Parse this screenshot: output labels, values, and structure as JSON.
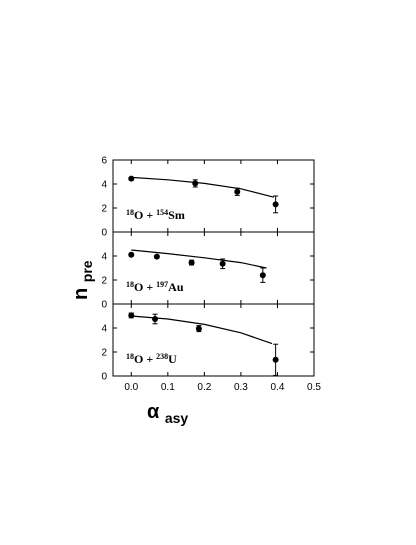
{
  "chart_data": {
    "type": "scatter",
    "x_axis": {
      "label_main": "α",
      "label_sub": "asy",
      "lim": [
        -0.05,
        0.5
      ],
      "ticks": [
        "0.0",
        "0.1",
        "0.2",
        "0.3",
        "0.4",
        "0.5"
      ],
      "tick_values": [
        0.0,
        0.1,
        0.2,
        0.3,
        0.4,
        0.5
      ]
    },
    "y_axis": {
      "label_main": "n",
      "label_sub": "pre"
    },
    "panels": [
      {
        "id": "sm",
        "label": {
          "sup1": "18",
          "mid": "O + ",
          "sup2": "154",
          "end": "Sm"
        },
        "ylim": [
          0,
          6
        ],
        "yticks": [
          "0",
          "2",
          "4",
          "6"
        ],
        "ytick_values": [
          0,
          2,
          4,
          6
        ],
        "points": [
          {
            "x": 0.0,
            "y": 4.45,
            "err": 0.1
          },
          {
            "x": 0.175,
            "y": 4.05,
            "err": 0.3
          },
          {
            "x": 0.29,
            "y": 3.35,
            "err": 0.3
          },
          {
            "x": 0.395,
            "y": 2.3,
            "err": 0.7
          }
        ],
        "curve": [
          [
            0.0,
            4.55
          ],
          [
            0.1,
            4.35
          ],
          [
            0.2,
            4.05
          ],
          [
            0.3,
            3.6
          ],
          [
            0.39,
            2.9
          ]
        ]
      },
      {
        "id": "au",
        "label": {
          "sup1": "18",
          "mid": "O + ",
          "sup2": "197",
          "end": "Au"
        },
        "ylim": [
          0,
          6
        ],
        "yticks": [
          "0",
          "2",
          "4"
        ],
        "ytick_values": [
          0,
          2,
          4
        ],
        "points": [
          {
            "x": 0.0,
            "y": 4.1,
            "err": 0.1
          },
          {
            "x": 0.07,
            "y": 3.95,
            "err": 0.1
          },
          {
            "x": 0.165,
            "y": 3.45,
            "err": 0.2
          },
          {
            "x": 0.25,
            "y": 3.35,
            "err": 0.4
          },
          {
            "x": 0.36,
            "y": 2.4,
            "err": 0.6
          }
        ],
        "curve": [
          [
            0.0,
            4.5
          ],
          [
            0.1,
            4.2
          ],
          [
            0.2,
            3.85
          ],
          [
            0.3,
            3.45
          ],
          [
            0.37,
            3.0
          ]
        ]
      },
      {
        "id": "u",
        "label": {
          "sup1": "18",
          "mid": "O + ",
          "sup2": "238",
          "end": "U"
        },
        "ylim": [
          0,
          6
        ],
        "yticks": [
          "0",
          "2",
          "4"
        ],
        "ytick_values": [
          0,
          2,
          4
        ],
        "points": [
          {
            "x": 0.0,
            "y": 5.05,
            "err": 0.2
          },
          {
            "x": 0.065,
            "y": 4.75,
            "err": 0.4
          },
          {
            "x": 0.185,
            "y": 3.95,
            "err": 0.25
          },
          {
            "x": 0.395,
            "y": 1.35,
            "err": 1.3
          }
        ],
        "curve": [
          [
            0.0,
            5.0
          ],
          [
            0.1,
            4.75
          ],
          [
            0.2,
            4.3
          ],
          [
            0.3,
            3.6
          ],
          [
            0.385,
            2.7
          ]
        ]
      }
    ]
  }
}
